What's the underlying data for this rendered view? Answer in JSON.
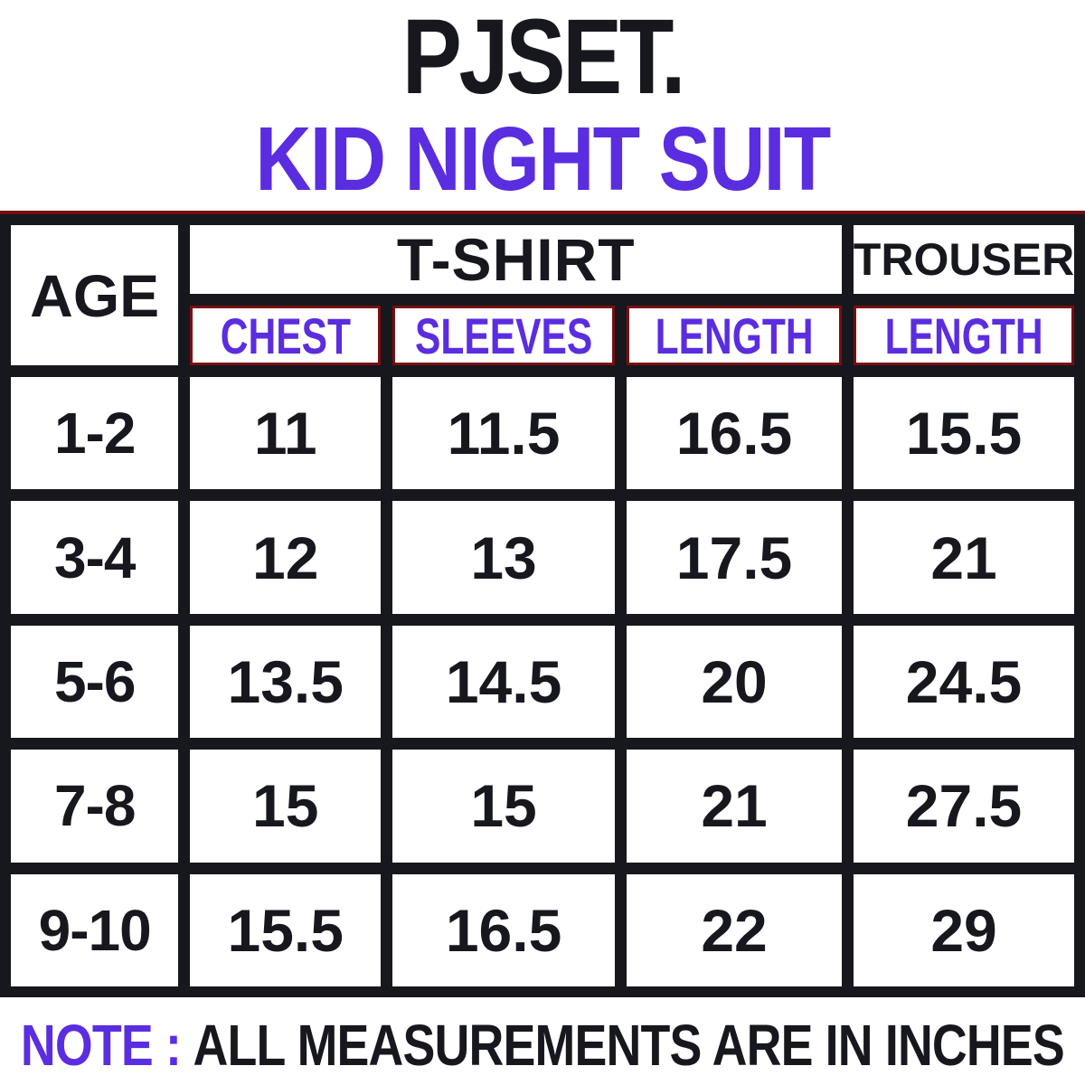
{
  "title": {
    "brand": "PJSET.",
    "subtitle": "KID NIGHT SUIT"
  },
  "chart_data": {
    "type": "table",
    "title": "PJSET. KID NIGHT SUIT size chart",
    "units": "inches",
    "headers": {
      "age": "AGE",
      "tshirt_group": "T-SHIRT",
      "trouser_group": "TROUSER",
      "sub": [
        "CHEST",
        "SLEEVES",
        "LENGTH",
        "LENGTH"
      ]
    },
    "rows": [
      [
        "1-2",
        "11",
        "11.5",
        "16.5",
        "15.5"
      ],
      [
        "3-4",
        "12",
        "13",
        "17.5",
        "21"
      ],
      [
        "5-6",
        "13.5",
        "14.5",
        "20",
        "24.5"
      ],
      [
        "7-8",
        "15",
        "15",
        "21",
        "27.5"
      ],
      [
        "9-10",
        "15.5",
        "16.5",
        "22",
        "29"
      ]
    ],
    "note": {
      "label": "NOTE :",
      "text": "ALL MEASUREMENTS ARE IN INCHES"
    },
    "layout_hints": {
      "grid_background": "black",
      "subheader_border": "dark-red boxes around sub-column labels",
      "top_accent_line": "dark-red line across table top"
    }
  },
  "colors": {
    "accent_purple": "#5b2de0",
    "ink_black": "#16181e",
    "accent_dark_red": "#7b0d10",
    "cell_background": "#ffffff"
  }
}
